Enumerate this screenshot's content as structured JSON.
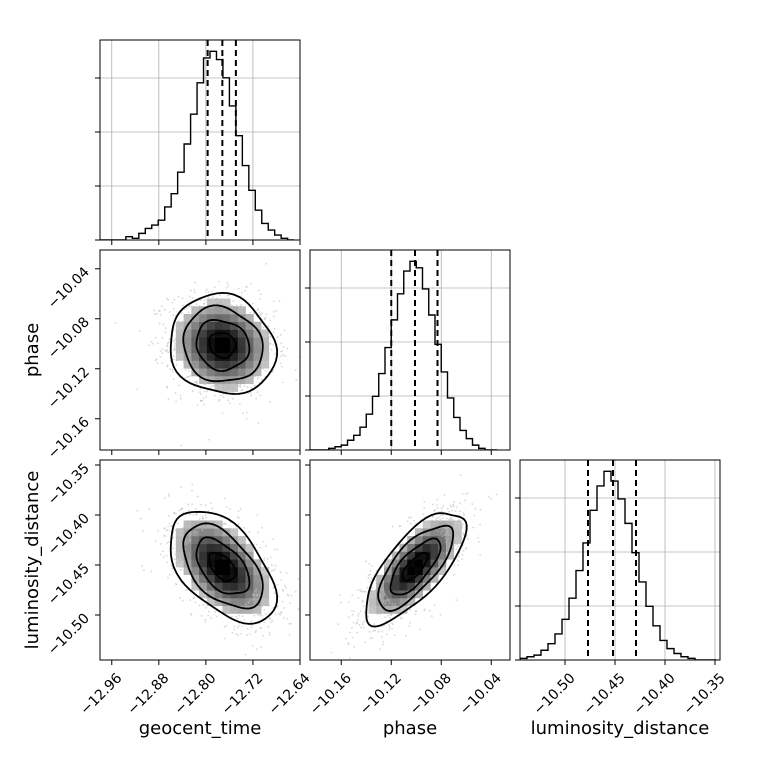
{
  "chart_data": {
    "type": "corner",
    "parameters": [
      "geocent_time",
      "phase",
      "luminosity_distance"
    ],
    "ranges": {
      "geocent_time": [
        -12.98,
        -12.64
      ],
      "phase": [
        -10.185,
        -10.025
      ],
      "luminosity_distance": [
        -10.545,
        -10.345
      ]
    },
    "ticks": {
      "geocent_time": [
        -12.96,
        -12.88,
        -12.8,
        -12.72,
        -12.64
      ],
      "phase": [
        -10.16,
        -10.12,
        -10.08,
        -10.04
      ],
      "luminosity_distance": [
        -10.5,
        -10.45,
        -10.4,
        -10.35
      ]
    },
    "tick_labels": {
      "geocent_time": [
        "−12.96",
        "−12.88",
        "−12.80",
        "−12.72",
        "−12.64"
      ],
      "phase": [
        "−10.16",
        "−10.12",
        "−10.08",
        "−10.04"
      ],
      "luminosity_distance": [
        "−10.50",
        "−10.45",
        "−10.40",
        "−10.35"
      ]
    },
    "quantiles": {
      "geocent_time": [
        -12.797,
        -12.772,
        -12.749
      ],
      "phase": [
        -10.12,
        -10.101,
        -10.083
      ],
      "luminosity_distance": [
        -10.477,
        -10.452,
        -10.429
      ]
    },
    "histograms": {
      "geocent_time": {
        "edges": [
          -12.98,
          -12.969,
          -12.958,
          -12.947,
          -12.936,
          -12.925,
          -12.914,
          -12.903,
          -12.892,
          -12.881,
          -12.87,
          -12.859,
          -12.848,
          -12.837,
          -12.826,
          -12.815,
          -12.804,
          -12.793,
          -12.782,
          -12.771,
          -12.76,
          -12.749,
          -12.738,
          -12.727,
          -12.716,
          -12.705,
          -12.694,
          -12.683,
          -12.672,
          -12.661,
          -12.65
        ],
        "counts": [
          0,
          0,
          0,
          0,
          2,
          1,
          4,
          7,
          9,
          12,
          20,
          28,
          41,
          58,
          76,
          95,
          110,
          114,
          109,
          98,
          81,
          63,
          45,
          30,
          18,
          10,
          6,
          3,
          1,
          0
        ]
      },
      "phase": {
        "edges": [
          -10.185,
          -10.18,
          -10.175,
          -10.17,
          -10.165,
          -10.16,
          -10.155,
          -10.15,
          -10.145,
          -10.14,
          -10.135,
          -10.13,
          -10.125,
          -10.12,
          -10.115,
          -10.11,
          -10.105,
          -10.1,
          -10.095,
          -10.09,
          -10.085,
          -10.08,
          -10.075,
          -10.07,
          -10.065,
          -10.06,
          -10.055,
          -10.05,
          -10.045,
          -10.04,
          -10.035
        ],
        "counts": [
          0,
          0,
          0,
          1,
          2,
          3,
          6,
          9,
          14,
          22,
          33,
          47,
          63,
          80,
          96,
          110,
          116,
          112,
          99,
          83,
          65,
          48,
          32,
          20,
          12,
          7,
          3,
          1,
          0,
          0
        ]
      },
      "luminosity_distance": {
        "edges": [
          -10.545,
          -10.538,
          -10.531,
          -10.524,
          -10.517,
          -10.51,
          -10.503,
          -10.496,
          -10.489,
          -10.482,
          -10.475,
          -10.468,
          -10.461,
          -10.454,
          -10.447,
          -10.44,
          -10.433,
          -10.426,
          -10.419,
          -10.412,
          -10.405,
          -10.398,
          -10.391,
          -10.384,
          -10.377,
          -10.37,
          -10.363,
          -10.356,
          -10.349
        ],
        "counts": [
          1,
          2,
          3,
          6,
          10,
          16,
          25,
          38,
          55,
          72,
          92,
          107,
          116,
          110,
          99,
          84,
          66,
          48,
          33,
          21,
          12,
          7,
          4,
          2,
          1,
          0,
          0,
          0
        ]
      }
    },
    "pairs": [
      {
        "x": "geocent_time",
        "y": "phase",
        "mean": [
          -12.772,
          -10.101
        ],
        "std": [
          0.045,
          0.02
        ],
        "correlation": -0.1
      },
      {
        "x": "geocent_time",
        "y": "luminosity_distance",
        "mean": [
          -12.772,
          -10.452
        ],
        "std": [
          0.045,
          0.028
        ],
        "correlation": -0.5
      },
      {
        "x": "phase",
        "y": "luminosity_distance",
        "mean": [
          -10.101,
          -10.452
        ],
        "std": [
          0.02,
          0.028
        ],
        "correlation": 0.72
      }
    ],
    "contour_levels_sigma": [
      0.5,
      1.0,
      1.5,
      2.0
    ],
    "grid": true,
    "colors": {
      "line": "#000000",
      "grid": "#b0b0b0",
      "points": "#b8b8b8"
    }
  }
}
